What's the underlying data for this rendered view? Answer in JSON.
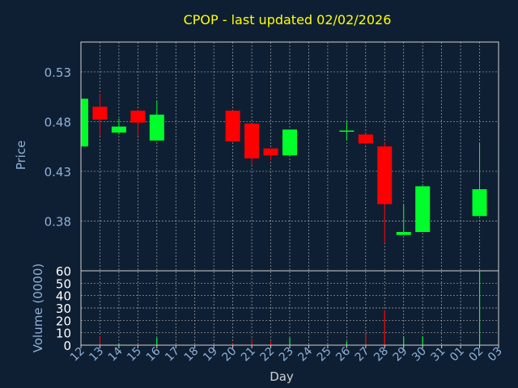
{
  "chart_data": {
    "type": "candlestick",
    "title": "CPOP - last updated 02/02/2026",
    "xlabel": "Day",
    "ylabel": "Price",
    "volume_label": "Volume (0000)",
    "categories": [
      "12",
      "13",
      "14",
      "15",
      "16",
      "17",
      "18",
      "19",
      "20",
      "21",
      "22",
      "23",
      "24",
      "25",
      "26",
      "27",
      "28",
      "29",
      "30",
      "31",
      "01",
      "02",
      "03"
    ],
    "price_ticks": [
      "0.53",
      "0.48",
      "0.43",
      "0.38"
    ],
    "price_tick_values": [
      0.53,
      0.48,
      0.43,
      0.38
    ],
    "price_range": [
      0.33,
      0.56
    ],
    "volume_ticks": [
      "60",
      "50",
      "40",
      "30",
      "20",
      "10",
      "0"
    ],
    "volume_tick_values": [
      60,
      50,
      40,
      30,
      20,
      10,
      0
    ],
    "volume_range": [
      0,
      60
    ],
    "grid": true,
    "colors": {
      "background": "#0f1f33",
      "up": "#00ff2a",
      "down": "#ff0000",
      "title": "#ffff00",
      "label": "#8fb1d8",
      "grid": "#c8c8c8"
    },
    "candles": [
      {
        "day": "12",
        "open": 0.455,
        "close": 0.503,
        "high": 0.505,
        "low": 0.454
      },
      {
        "day": "13",
        "open": 0.495,
        "close": 0.482,
        "high": 0.508,
        "low": 0.466
      },
      {
        "day": "14",
        "open": 0.469,
        "close": 0.475,
        "high": 0.483,
        "low": 0.467
      },
      {
        "day": "15",
        "open": 0.491,
        "close": 0.479,
        "high": 0.492,
        "low": 0.466
      },
      {
        "day": "16",
        "open": 0.461,
        "close": 0.487,
        "high": 0.501,
        "low": 0.461
      },
      {
        "day": "20",
        "open": 0.491,
        "close": 0.46,
        "high": 0.491,
        "low": 0.46
      },
      {
        "day": "21",
        "open": 0.478,
        "close": 0.443,
        "high": 0.478,
        "low": 0.437
      },
      {
        "day": "22",
        "open": 0.453,
        "close": 0.446,
        "high": 0.453,
        "low": 0.441
      },
      {
        "day": "23",
        "open": 0.446,
        "close": 0.472,
        "high": 0.472,
        "low": 0.446
      },
      {
        "day": "26",
        "open": 0.471,
        "close": 0.471,
        "high": 0.48,
        "low": 0.461
      },
      {
        "day": "27",
        "open": 0.467,
        "close": 0.458,
        "high": 0.468,
        "low": 0.457
      },
      {
        "day": "28",
        "open": 0.455,
        "close": 0.397,
        "high": 0.459,
        "low": 0.358
      },
      {
        "day": "29",
        "open": 0.366,
        "close": 0.369,
        "high": 0.397,
        "low": 0.366
      },
      {
        "day": "30",
        "open": 0.369,
        "close": 0.415,
        "high": 0.415,
        "low": 0.369
      },
      {
        "day": "02",
        "open": 0.385,
        "close": 0.412,
        "high": 0.458,
        "low": 0.385
      }
    ],
    "volume": [
      {
        "day": "12",
        "value": 0.5
      },
      {
        "day": "13",
        "value": 7
      },
      {
        "day": "14",
        "value": 1
      },
      {
        "day": "15",
        "value": 1
      },
      {
        "day": "16",
        "value": 6
      },
      {
        "day": "20",
        "value": 2
      },
      {
        "day": "21",
        "value": 5
      },
      {
        "day": "22",
        "value": 3
      },
      {
        "day": "23",
        "value": 6
      },
      {
        "day": "26",
        "value": 3
      },
      {
        "day": "27",
        "value": 9
      },
      {
        "day": "28",
        "value": 28
      },
      {
        "day": "29",
        "value": 7
      },
      {
        "day": "30",
        "value": 7
      },
      {
        "day": "02",
        "value": 60
      }
    ]
  }
}
